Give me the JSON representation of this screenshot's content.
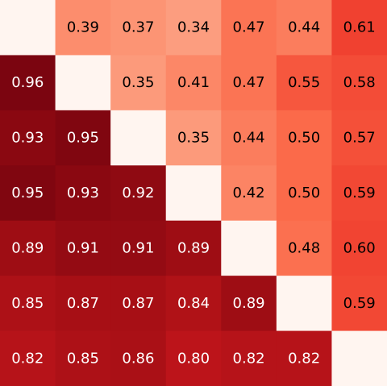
{
  "chart_data": {
    "type": "heatmap",
    "title": "",
    "xlabel": "",
    "ylabel": "",
    "rows": 7,
    "cols": 7,
    "grid": false,
    "colormap": "reds",
    "values": [
      [
        null,
        0.39,
        0.37,
        0.34,
        0.47,
        0.44,
        0.61
      ],
      [
        0.96,
        null,
        0.35,
        0.41,
        0.47,
        0.55,
        0.58
      ],
      [
        0.93,
        0.95,
        null,
        0.35,
        0.44,
        0.5,
        0.57
      ],
      [
        0.95,
        0.93,
        0.92,
        null,
        0.42,
        0.5,
        0.59
      ],
      [
        0.89,
        0.91,
        0.91,
        0.89,
        null,
        0.48,
        0.6
      ],
      [
        0.85,
        0.87,
        0.87,
        0.84,
        0.89,
        null,
        0.59
      ],
      [
        0.82,
        0.85,
        0.86,
        0.8,
        0.82,
        0.82,
        null
      ]
    ],
    "labels": [
      [
        "",
        "0.39",
        "0.37",
        "0.34",
        "0.47",
        "0.44",
        "0.61"
      ],
      [
        "0.96",
        "",
        "0.35",
        "0.41",
        "0.47",
        "0.55",
        "0.58"
      ],
      [
        "0.93",
        "0.95",
        "",
        "0.35",
        "0.44",
        "0.50",
        "0.57"
      ],
      [
        "0.95",
        "0.93",
        "0.92",
        "",
        "0.42",
        "0.50",
        "0.59"
      ],
      [
        "0.89",
        "0.91",
        "0.91",
        "0.89",
        "",
        "0.48",
        "0.60"
      ],
      [
        "0.85",
        "0.87",
        "0.87",
        "0.84",
        "0.89",
        "",
        "0.59"
      ],
      [
        "0.82",
        "0.85",
        "0.86",
        "0.80",
        "0.82",
        "0.82",
        ""
      ]
    ],
    "colors": {
      "empty": "#fff5f0",
      "text_dark": "#000000",
      "text_light": "#ffffff"
    }
  }
}
